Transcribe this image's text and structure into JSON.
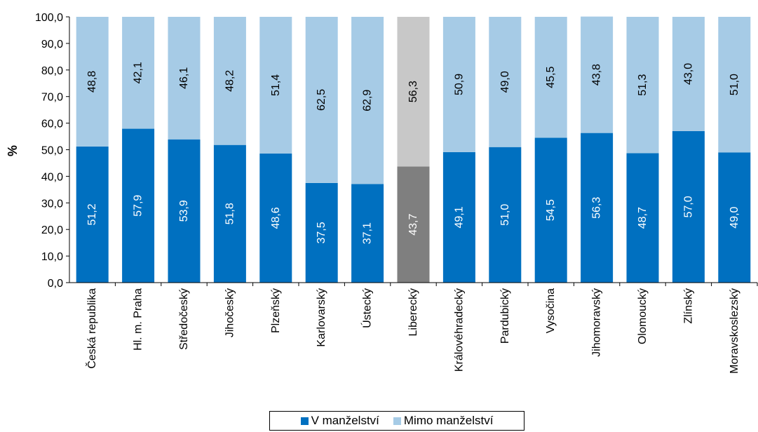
{
  "chart_data": {
    "type": "bar",
    "stacked": true,
    "ylabel": "%",
    "ylim": [
      0,
      100
    ],
    "yticks": [
      "0,0",
      "10,0",
      "20,0",
      "30,0",
      "40,0",
      "50,0",
      "60,0",
      "70,0",
      "80,0",
      "90,0",
      "100,0"
    ],
    "categories": [
      "Česká republika",
      "Hl. m. Praha",
      "Středočeský",
      "Jihočeský",
      "Plzeňský",
      "Karlovarský",
      "Ústecký",
      "Liberecký",
      "Královéhradecký",
      "Pardubický",
      "Vysočina",
      "Jihomoravský",
      "Olomoucký",
      "Zlínský",
      "Moravskoslezský"
    ],
    "series": [
      {
        "name": "V manželství",
        "color": "#0070c0",
        "values": [
          51.2,
          57.9,
          53.9,
          51.8,
          48.6,
          37.5,
          37.1,
          43.7,
          49.1,
          51.0,
          54.5,
          56.3,
          48.7,
          57.0,
          49.0
        ],
        "labels": [
          "51,2",
          "57,9",
          "53,9",
          "51,8",
          "48,6",
          "37,5",
          "37,1",
          "43,7",
          "49,1",
          "51,0",
          "54,5",
          "56,3",
          "48,7",
          "57,0",
          "49,0"
        ]
      },
      {
        "name": "Mimo manželství",
        "color": "#a6cbe6",
        "values": [
          48.8,
          42.1,
          46.1,
          48.2,
          51.4,
          62.5,
          62.9,
          56.3,
          50.9,
          49.0,
          45.5,
          43.8,
          51.3,
          43.0,
          51.0
        ],
        "labels": [
          "48,8",
          "42,1",
          "46,1",
          "48,2",
          "51,4",
          "62,5",
          "62,9",
          "56,3",
          "50,9",
          "49,0",
          "45,5",
          "43,8",
          "51,3",
          "43,0",
          "51,0"
        ]
      }
    ],
    "highlight": {
      "category": "Liberecký",
      "colors": [
        "#7f7f7f",
        "#c8c8c8"
      ]
    },
    "legend": {
      "placement": "bottom",
      "entries": [
        "V manželství",
        "Mimo manželství"
      ]
    }
  }
}
